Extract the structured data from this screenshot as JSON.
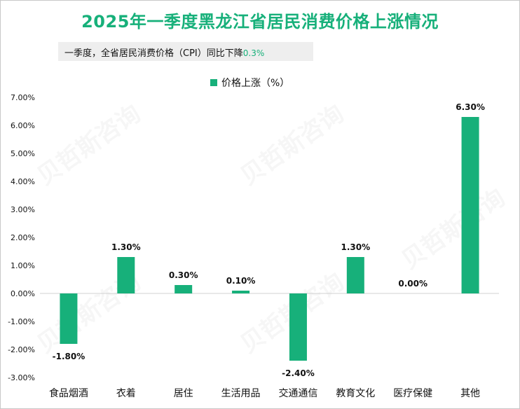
{
  "title": "2025年一季度黑龙江省居民消费价格上涨情况",
  "subtitle": {
    "text": "一季度，全省居民消费价格（CPI）同比下降",
    "highlight": "0.3%"
  },
  "colors": {
    "accent": "#17b07a"
  },
  "chart_data": {
    "type": "bar",
    "title": "2025年一季度黑龙江省居民消费价格上涨情况",
    "categories": [
      "食品烟酒",
      "衣着",
      "居住",
      "生活用品",
      "交通通信",
      "教育文化",
      "医疗保健",
      "其他"
    ],
    "series": [
      {
        "name": "价格上涨（%）",
        "values": [
          -1.8,
          1.3,
          0.3,
          0.1,
          -2.4,
          1.3,
          0.0,
          6.3
        ]
      }
    ],
    "value_labels": [
      "-1.80%",
      "1.30%",
      "0.30%",
      "0.10%",
      "-2.40%",
      "1.30%",
      "0.00%",
      "6.30%"
    ],
    "ylim": [
      -3,
      7
    ],
    "yticks": [
      7,
      6,
      5,
      4,
      3,
      2,
      1,
      0,
      -1,
      -2,
      -3
    ],
    "ytick_labels": [
      "7.00%",
      "6.00%",
      "5.00%",
      "4.00%",
      "3.00%",
      "2.00%",
      "1.00%",
      "0.00%",
      "-1.00%",
      "-2.00%",
      "-3.00%"
    ],
    "legend": "top-center",
    "grid": false
  }
}
